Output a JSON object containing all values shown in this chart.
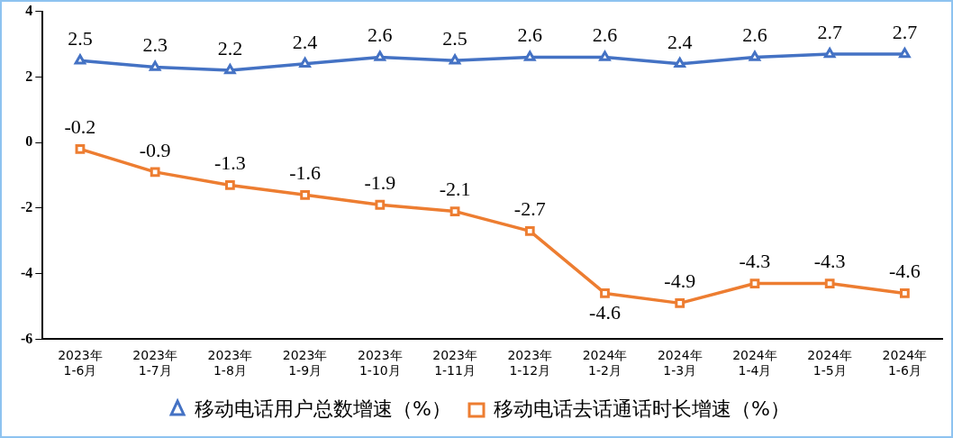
{
  "chart_data": {
    "type": "line",
    "categories": [
      "2023年\n1-6月",
      "2023年\n1-7月",
      "2023年\n1-8月",
      "2023年\n1-9月",
      "2023年\n1-10月",
      "2023年\n1-11月",
      "2023年\n1-12月",
      "2024年\n1-2月",
      "2024年\n1-3月",
      "2024年\n1-4月",
      "2024年\n1-5月",
      "2024年\n1-6月"
    ],
    "series": [
      {
        "name": "移动电话用户总数增速（%）",
        "color": "#4472c4",
        "marker": "triangle",
        "values": [
          2.5,
          2.3,
          2.2,
          2.4,
          2.6,
          2.5,
          2.6,
          2.6,
          2.4,
          2.6,
          2.7,
          2.7
        ]
      },
      {
        "name": "移动电话去话通话时长增速（%）",
        "color": "#ed7d31",
        "marker": "square",
        "values": [
          -0.2,
          -0.9,
          -1.3,
          -1.6,
          -1.9,
          -2.1,
          -2.7,
          -4.6,
          -4.9,
          -4.3,
          -4.3,
          -4.6
        ]
      }
    ],
    "ylim": [
      -6,
      4
    ],
    "yticks": [
      -6,
      -4,
      -2,
      0,
      2,
      4
    ],
    "grid": false,
    "legend": "bottom",
    "data_labels": true,
    "line_style": "solid"
  }
}
